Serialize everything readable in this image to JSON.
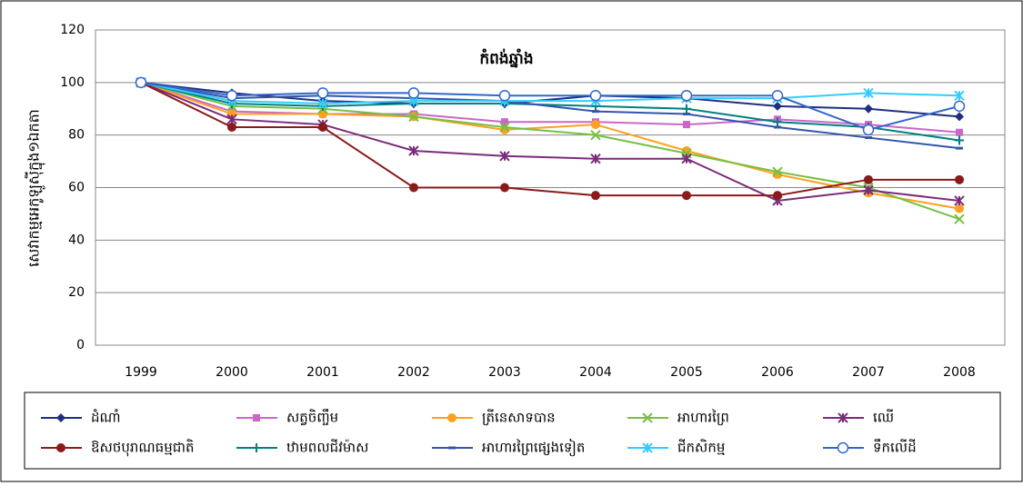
{
  "chart_data": {
    "type": "line",
    "title": "កំពង់ឆ្នាំង",
    "y_label": "សេវាកម្មអេកូឡូស៊ីក្នុង១ឯកតា",
    "categories": [
      "1999",
      "2000",
      "2001",
      "2002",
      "2003",
      "2004",
      "2005",
      "2006",
      "2007",
      "2008"
    ],
    "ylim": [
      0,
      120
    ],
    "yticks": [
      0,
      20,
      40,
      60,
      80,
      100,
      120
    ],
    "grid": true,
    "series": [
      {
        "name": "ដំណាំ",
        "color": "#1f2f80",
        "marker": "diamond",
        "values": [
          100,
          96,
          93,
          92,
          92,
          95,
          94,
          91,
          90,
          87
        ]
      },
      {
        "name": "សត្វចិញ្ចឹម",
        "color": "#cc66cc",
        "marker": "square",
        "values": [
          100,
          89,
          88,
          88,
          85,
          85,
          84,
          86,
          84,
          81
        ]
      },
      {
        "name": "ត្រីនេសាទបាន",
        "color": "#ffa020",
        "marker": "circle",
        "values": [
          100,
          88,
          88,
          87,
          82,
          84,
          74,
          65,
          58,
          52
        ]
      },
      {
        "name": "អាហារព្រៃ",
        "color": "#77c043",
        "marker": "x",
        "values": [
          100,
          91,
          90,
          87,
          83,
          80,
          73,
          66,
          60,
          48
        ]
      },
      {
        "name": "ឈើ",
        "color": "#7b2c7b",
        "marker": "star",
        "values": [
          100,
          86,
          84,
          74,
          72,
          71,
          71,
          55,
          59,
          55
        ]
      },
      {
        "name": "ឱសថបុរាណធម្មជាតិ",
        "color": "#8b1a1a",
        "marker": "circle",
        "values": [
          100,
          83,
          83,
          60,
          60,
          57,
          57,
          57,
          63,
          63
        ]
      },
      {
        "name": "ឋាមពលជីវម៉ាស",
        "color": "#008080",
        "marker": "plus",
        "values": [
          100,
          92,
          91,
          92,
          92,
          91,
          90,
          85,
          83,
          78
        ]
      },
      {
        "name": "អាហារព្រៃផ្សេងទៀត",
        "color": "#3355aa",
        "marker": "dash",
        "values": [
          100,
          94,
          95,
          94,
          93,
          89,
          88,
          83,
          79,
          75
        ]
      },
      {
        "name": "ជីកសិកម្ម",
        "color": "#33ccff",
        "marker": "star",
        "values": [
          100,
          93,
          92,
          93,
          93,
          93,
          94,
          94,
          96,
          95
        ]
      },
      {
        "name": "ទឹកលើដី",
        "color": "#3366cc",
        "marker": "open",
        "values": [
          100,
          95,
          96,
          96,
          95,
          95,
          95,
          95,
          82,
          91
        ]
      }
    ]
  }
}
